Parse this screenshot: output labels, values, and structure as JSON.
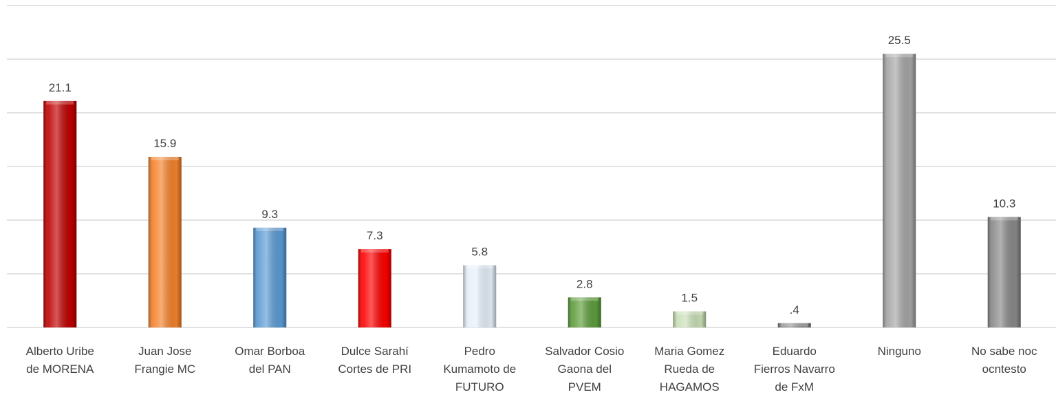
{
  "chart_data": {
    "type": "bar",
    "categories": [
      "Alberto Uribe\nde MORENA",
      "Juan Jose\nFrangie MC",
      "Omar Borboa\ndel PAN",
      "Dulce Sarahí\nCortes de PRI",
      "Pedro\nKumamoto de\nFUTURO",
      "Salvador Cosio\nGaona del\nPVEM",
      "Maria Gomez\nRueda de\nHAGAMOS",
      "Eduardo\nFierros Navarro\nde FxM",
      "Ninguno",
      "No sabe noc\nocntesto"
    ],
    "values": [
      21.1,
      15.9,
      9.3,
      7.3,
      5.8,
      2.8,
      1.5,
      0.4,
      25.5,
      10.3
    ],
    "value_labels": [
      "21.1",
      "15.9",
      "9.3",
      "7.3",
      "5.8",
      "2.8",
      "1.5",
      ".4",
      "25.5",
      "10.3"
    ],
    "colors": [
      "#c00000",
      "#f5822a",
      "#5b9bd5",
      "#ff0000",
      "#e6f0fa",
      "#5e9e3c",
      "#c9e0b6",
      "#7f7f7f",
      "#a6a6a6",
      "#8a8a8a"
    ],
    "ylim": [
      0,
      30
    ],
    "yticks": [
      0,
      5,
      10,
      15,
      20,
      25,
      30
    ],
    "grid": true
  }
}
